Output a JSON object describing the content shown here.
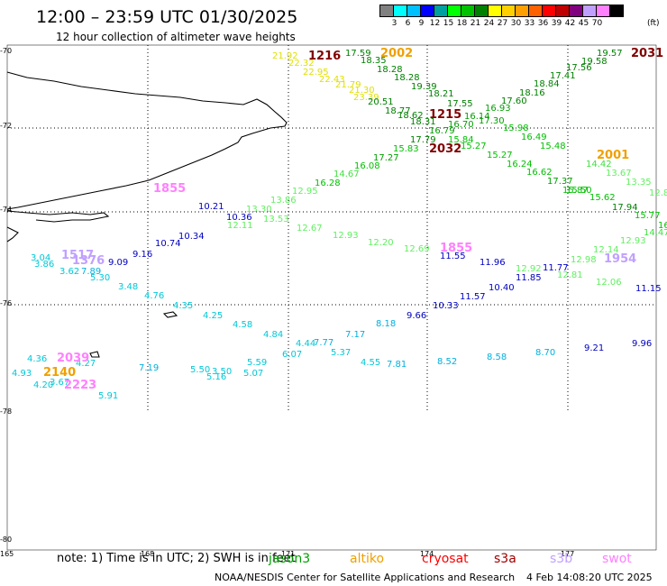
{
  "header": {
    "title": "12:00 – 23:59 UTC 01/30/2025",
    "subtitle": "12 hour collection of altimeter wave heights"
  },
  "colorbar": {
    "colors": [
      "#808080",
      "#00ffff",
      "#00c0ff",
      "#0000ff",
      "#00a0a0",
      "#00ff00",
      "#00c000",
      "#008000",
      "#ffff00",
      "#ffd000",
      "#ffa000",
      "#ff6000",
      "#ff0000",
      "#c00000",
      "#800080",
      "#c0a0ff",
      "#ff80ff",
      "#000000"
    ],
    "labels": [
      "3",
      "6",
      "9",
      "12",
      "15",
      "18",
      "21",
      "24",
      "27",
      "30",
      "33",
      "36",
      "39",
      "42",
      "45",
      "70"
    ],
    "unit": "(ft)"
  },
  "axes": {
    "lat_labels": [
      "-70",
      "-72",
      "-74",
      "-76",
      "-78",
      "-80"
    ],
    "lon_labels": [
      "165",
      "168",
      "171",
      "174",
      "177"
    ]
  },
  "observations": [
    {
      "v": "21.92",
      "c": "#e0e000"
    },
    {
      "v": "22.32",
      "c": "#e0e000"
    },
    {
      "v": "22.95",
      "c": "#e0e000"
    },
    {
      "v": "22.43",
      "c": "#e0e000"
    },
    {
      "v": "21.79",
      "c": "#e0e000"
    },
    {
      "v": "21.30",
      "c": "#e0e000"
    },
    {
      "v": "23.39",
      "c": "#e0e000"
    },
    {
      "v": "17.59",
      "c": "#008000"
    },
    {
      "v": "18.35",
      "c": "#008000"
    },
    {
      "v": "18.28",
      "c": "#008000"
    },
    {
      "v": "18.28",
      "c": "#008000"
    },
    {
      "v": "19.39",
      "c": "#008000"
    },
    {
      "v": "20.51",
      "c": "#008000"
    },
    {
      "v": "18.77",
      "c": "#008000"
    },
    {
      "v": "18.62",
      "c": "#008000"
    },
    {
      "v": "18.21",
      "c": "#008000"
    },
    {
      "v": "18.31",
      "c": "#008000"
    },
    {
      "v": "17.55",
      "c": "#008000"
    },
    {
      "v": "16.93",
      "c": "#00a000"
    },
    {
      "v": "17.30",
      "c": "#00a000"
    },
    {
      "v": "16.14",
      "c": "#00a000"
    },
    {
      "v": "16.70",
      "c": "#00a000"
    },
    {
      "v": "16.79",
      "c": "#00a000"
    },
    {
      "v": "15.84",
      "c": "#00c000"
    },
    {
      "v": "17.79",
      "c": "#008000"
    },
    {
      "v": "19.57",
      "c": "#008000"
    },
    {
      "v": "19.58",
      "c": "#008000"
    },
    {
      "v": "17.56",
      "c": "#008000"
    },
    {
      "v": "17.41",
      "c": "#008000"
    },
    {
      "v": "18.84",
      "c": "#008000"
    },
    {
      "v": "18.16",
      "c": "#008000"
    },
    {
      "v": "17.60",
      "c": "#008000"
    },
    {
      "v": "15.98",
      "c": "#00c000"
    },
    {
      "v": "16.49",
      "c": "#00c000"
    },
    {
      "v": "15.48",
      "c": "#00c000"
    },
    {
      "v": "15.27",
      "c": "#00c000"
    },
    {
      "v": "15.27",
      "c": "#00c000"
    },
    {
      "v": "15.83",
      "c": "#00c000"
    },
    {
      "v": "17.27",
      "c": "#00a000"
    },
    {
      "v": "16.08",
      "c": "#00c000"
    },
    {
      "v": "14.67",
      "c": "#40e040"
    },
    {
      "v": "16.28",
      "c": "#00c000"
    },
    {
      "v": "12.95",
      "c": "#60f060"
    },
    {
      "v": "13.86",
      "c": "#60f060"
    },
    {
      "v": "13.30",
      "c": "#60f060"
    },
    {
      "v": "13.53",
      "c": "#60f060"
    },
    {
      "v": "12.11",
      "c": "#60f060"
    },
    {
      "v": "16.24",
      "c": "#00c000"
    },
    {
      "v": "16.62",
      "c": "#00c000"
    },
    {
      "v": "17.37",
      "c": "#00a000"
    },
    {
      "v": "15.87",
      "c": "#00c000"
    },
    {
      "v": "14.42",
      "c": "#40e040"
    },
    {
      "v": "13.67",
      "c": "#60f060"
    },
    {
      "v": "13.35",
      "c": "#60f060"
    },
    {
      "v": "12.8",
      "c": "#60f060"
    },
    {
      "v": "15.50",
      "c": "#00c000"
    },
    {
      "v": "15.62",
      "c": "#00c000"
    },
    {
      "v": "17.94",
      "c": "#008000"
    },
    {
      "v": "15.77",
      "c": "#00c000"
    },
    {
      "v": "14.47",
      "c": "#40e040"
    },
    {
      "v": "16",
      "c": "#00c000"
    },
    {
      "v": "12.67",
      "c": "#60f060"
    },
    {
      "v": "12.93",
      "c": "#60f060"
    },
    {
      "v": "12.20",
      "c": "#60f060"
    },
    {
      "v": "12.69",
      "c": "#60f060"
    },
    {
      "v": "12.92",
      "c": "#60f060"
    },
    {
      "v": "12.81",
      "c": "#60f060"
    },
    {
      "v": "12.98",
      "c": "#60f060"
    },
    {
      "v": "12.14",
      "c": "#60f060"
    },
    {
      "v": "12.93",
      "c": "#60f060"
    },
    {
      "v": "12.06",
      "c": "#60f060"
    },
    {
      "v": "10.21",
      "c": "#0000c0"
    },
    {
      "v": "10.36",
      "c": "#0000c0"
    },
    {
      "v": "10.34",
      "c": "#0000c0"
    },
    {
      "v": "10.74",
      "c": "#0000c0"
    },
    {
      "v": "9.16",
      "c": "#0000c0"
    },
    {
      "v": "9.09",
      "c": "#0000c0"
    },
    {
      "v": "11.55",
      "c": "#0000c0"
    },
    {
      "v": "11.96",
      "c": "#0000c0"
    },
    {
      "v": "11.77",
      "c": "#0000c0"
    },
    {
      "v": "11.85",
      "c": "#0000c0"
    },
    {
      "v": "10.40",
      "c": "#0000c0"
    },
    {
      "v": "11.57",
      "c": "#0000c0"
    },
    {
      "v": "10.33",
      "c": "#0000c0"
    },
    {
      "v": "9.66",
      "c": "#0000c0"
    },
    {
      "v": "11.15",
      "c": "#0000c0"
    },
    {
      "v": "9.21",
      "c": "#0000c0"
    },
    {
      "v": "9.96",
      "c": "#0000c0"
    },
    {
      "v": "3.04",
      "c": "#00c8d8"
    },
    {
      "v": "3.86",
      "c": "#00c8d8"
    },
    {
      "v": "3.62",
      "c": "#00c8d8"
    },
    {
      "v": "7.89",
      "c": "#00b0e0"
    },
    {
      "v": "5.30",
      "c": "#00c8d8"
    },
    {
      "v": "3.48",
      "c": "#00c8d8"
    },
    {
      "v": "4.76",
      "c": "#00c8d8"
    },
    {
      "v": "4.35",
      "c": "#00c8d8"
    },
    {
      "v": "4.25",
      "c": "#00c8d8"
    },
    {
      "v": "4.58",
      "c": "#00c8d8"
    },
    {
      "v": "4.84",
      "c": "#00c8d8"
    },
    {
      "v": "7.17",
      "c": "#00b0e0"
    },
    {
      "v": "8.18",
      "c": "#00b0e0"
    },
    {
      "v": "4.44",
      "c": "#00c8d8"
    },
    {
      "v": "7.77",
      "c": "#00b0e0"
    },
    {
      "v": "6.07",
      "c": "#00c8d8"
    },
    {
      "v": "5.37",
      "c": "#00c8d8"
    },
    {
      "v": "5.59",
      "c": "#00c8d8"
    },
    {
      "v": "5.50",
      "c": "#00c8d8"
    },
    {
      "v": "3.50",
      "c": "#00c8d8"
    },
    {
      "v": "5.16",
      "c": "#00c8d8"
    },
    {
      "v": "5.07",
      "c": "#00c8d8"
    },
    {
      "v": "4.55",
      "c": "#00c8d8"
    },
    {
      "v": "7.81",
      "c": "#00b0e0"
    },
    {
      "v": "8.52",
      "c": "#00b0e0"
    },
    {
      "v": "8.58",
      "c": "#00b0e0"
    },
    {
      "v": "8.70",
      "c": "#00b0e0"
    },
    {
      "v": "7.19",
      "c": "#00b0e0"
    },
    {
      "v": "4.36",
      "c": "#00c8d8"
    },
    {
      "v": "4.27",
      "c": "#00c8d8"
    },
    {
      "v": "4.93",
      "c": "#00c8d8"
    },
    {
      "v": "4.20",
      "c": "#00c8d8"
    },
    {
      "v": "3.67",
      "c": "#00c8d8"
    },
    {
      "v": "5.91",
      "c": "#00c8d8"
    }
  ],
  "pass_times": [
    {
      "v": "1216",
      "c": "#800000"
    },
    {
      "v": "2002",
      "c": "#f0a000"
    },
    {
      "v": "2031",
      "c": "#800000"
    },
    {
      "v": "1215",
      "c": "#800000"
    },
    {
      "v": "2032",
      "c": "#800000"
    },
    {
      "v": "2001",
      "c": "#f0a000"
    },
    {
      "v": "1855",
      "c": "#ff80ff"
    },
    {
      "v": "1855",
      "c": "#ff80ff"
    },
    {
      "v": "1954",
      "c": "#c0a0ff"
    },
    {
      "v": "1517",
      "c": "#c0a0ff"
    },
    {
      "v": "1376",
      "c": "#c0a0ff"
    },
    {
      "v": "2039",
      "c": "#ff80ff"
    },
    {
      "v": "2140",
      "c": "#f0a000"
    },
    {
      "v": "2223",
      "c": "#ff80ff"
    }
  ],
  "footer": {
    "note": "note: 1) Time is in UTC; 2) SWH is in feet",
    "legend": [
      {
        "label": "jason3",
        "color": "#00a000"
      },
      {
        "label": "altiko",
        "color": "#f0a000"
      },
      {
        "label": "cryosat",
        "color": "#ff0000"
      },
      {
        "label": "s3a",
        "color": "#a00000"
      },
      {
        "label": "s3b",
        "color": "#c0a0ff"
      },
      {
        "label": "swot",
        "color": "#ff80ff"
      }
    ],
    "credit": "NOAA/NESDIS Center for Satellite Applications and Research",
    "timestamp": "4 Feb 14:08:20 UTC 2025"
  }
}
